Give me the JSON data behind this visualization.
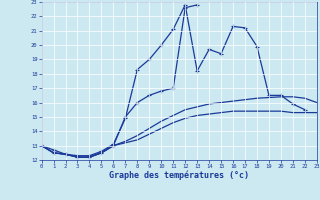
{
  "xlabel": "Graphe des températures (°c)",
  "background_color": "#cce8f0",
  "line_color": "#1a3a9a",
  "xmin": 0,
  "xmax": 23,
  "ymin": 12,
  "ymax": 23,
  "line1_x": [
    0,
    1,
    2,
    3,
    4,
    5,
    6,
    7,
    8,
    9,
    10,
    11,
    12,
    13,
    14,
    15,
    16,
    17,
    18,
    19,
    20,
    21,
    22
  ],
  "line1_y": [
    13.0,
    12.7,
    12.4,
    12.3,
    12.3,
    12.6,
    13.1,
    14.9,
    18.3,
    19.0,
    20.0,
    21.1,
    22.8,
    18.2,
    19.7,
    19.4,
    21.3,
    21.2,
    19.9,
    16.5,
    16.5,
    15.9,
    15.5
  ],
  "line2_x": [
    0,
    1,
    2,
    3,
    4,
    5,
    6,
    7,
    8,
    9,
    10,
    11,
    12,
    13
  ],
  "line2_y": [
    13.0,
    12.5,
    12.4,
    12.2,
    12.2,
    12.5,
    13.0,
    15.0,
    16.0,
    16.5,
    16.8,
    17.0,
    22.6,
    22.8
  ],
  "line3_x": [
    0,
    1,
    2,
    3,
    4,
    5,
    6,
    7,
    8,
    9,
    10,
    11,
    12,
    13,
    14,
    15,
    16,
    17,
    18,
    19,
    20,
    21,
    22,
    23
  ],
  "line3_y": [
    13.0,
    12.5,
    12.4,
    12.2,
    12.2,
    12.5,
    13.0,
    13.3,
    13.7,
    14.2,
    14.7,
    15.1,
    15.5,
    15.7,
    15.9,
    16.0,
    16.1,
    16.2,
    16.3,
    16.35,
    16.4,
    16.4,
    16.3,
    16.0
  ],
  "line4_x": [
    0,
    1,
    2,
    3,
    4,
    5,
    6,
    7,
    8,
    9,
    10,
    11,
    12,
    13,
    14,
    15,
    16,
    17,
    18,
    19,
    20,
    21,
    22,
    23
  ],
  "line4_y": [
    13.0,
    12.5,
    12.4,
    12.2,
    12.2,
    12.5,
    13.0,
    13.2,
    13.4,
    13.8,
    14.2,
    14.6,
    14.9,
    15.1,
    15.2,
    15.3,
    15.4,
    15.4,
    15.4,
    15.4,
    15.4,
    15.3,
    15.3,
    15.3
  ]
}
